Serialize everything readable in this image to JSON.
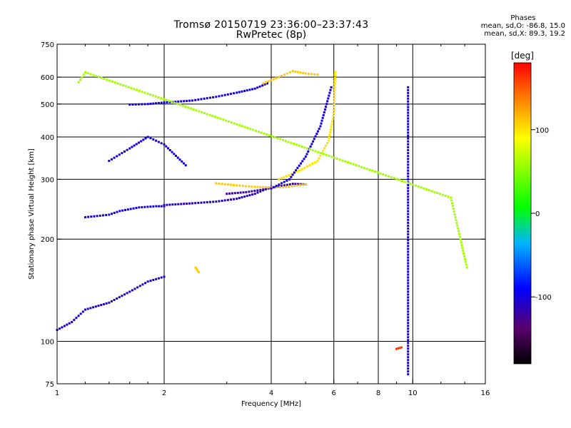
{
  "title": "Tromsø 20150719 23:36:00–23:37:43",
  "subtitle": "RwPretec (8p)",
  "stats": {
    "header": "Phases",
    "line_o": "mean, sd,O: -86.8, 15.0",
    "line_x": "mean, sd,X:  89.3, 19.2"
  },
  "colorbar": {
    "label": "[deg]",
    "range": [
      -180,
      180
    ],
    "ticks": [
      {
        "value": 100,
        "label": "100"
      },
      {
        "value": 0,
        "label": "0"
      },
      {
        "value": -100,
        "label": "-100"
      }
    ]
  },
  "chart_data": {
    "type": "scatter",
    "xlabel": "Frequency [MHz]",
    "ylabel": "Stationary phase Virtual Height [km]",
    "xscale": "log",
    "yscale": "log",
    "xlim": [
      1,
      16
    ],
    "ylim": [
      75,
      750
    ],
    "xticks": [
      {
        "value": 1,
        "label": "1"
      },
      {
        "value": 2,
        "label": "2"
      },
      {
        "value": 4,
        "label": "4"
      },
      {
        "value": 6,
        "label": "6"
      },
      {
        "value": 8,
        "label": "8"
      },
      {
        "value": 10,
        "label": "10"
      },
      {
        "value": 16,
        "label": "16"
      }
    ],
    "yticks": [
      {
        "value": 75,
        "label": "75"
      },
      {
        "value": 100,
        "label": "100"
      },
      {
        "value": 200,
        "label": "200"
      },
      {
        "value": 300,
        "label": "300"
      },
      {
        "value": 400,
        "label": "400"
      },
      {
        "value": 500,
        "label": "500"
      },
      {
        "value": 600,
        "label": "600"
      },
      {
        "value": 750,
        "label": "750"
      }
    ],
    "grid_x": [
      2,
      4,
      6,
      8,
      10
    ],
    "grid_y": [
      100,
      200,
      300,
      400,
      500,
      600
    ],
    "grid": true,
    "traces": [
      {
        "x": [
          1.2,
          1.4,
          1.5,
          1.7,
          1.9,
          2.0
        ],
        "y": [
          232,
          236,
          242,
          248,
          250,
          250
        ],
        "phase": -100
      },
      {
        "x": [
          2.0,
          2.4,
          2.8,
          3.2,
          3.6,
          4.0
        ],
        "y": [
          252,
          255,
          258,
          263,
          272,
          285
        ],
        "phase": -110
      },
      {
        "x": [
          3.0,
          3.4,
          3.8,
          4.2,
          4.6,
          5.0
        ],
        "y": [
          272,
          275,
          280,
          286,
          291,
          290
        ],
        "phase": -120
      },
      {
        "x": [
          2.8,
          3.2,
          3.6,
          4.0,
          4.4,
          5.0
        ],
        "y": [
          292,
          288,
          285,
          284,
          285,
          290
        ],
        "phase": 110
      },
      {
        "x": [
          4.2,
          4.8,
          5.4,
          5.8,
          6.0,
          6.05
        ],
        "y": [
          300,
          318,
          340,
          390,
          470,
          620
        ],
        "phase": 100
      },
      {
        "x": [
          4.0,
          4.5,
          5.0,
          5.5,
          5.9
        ],
        "y": [
          282,
          300,
          350,
          430,
          560
        ],
        "phase": -100
      },
      {
        "x": [
          1.6,
          1.8,
          2.0,
          2.4,
          2.8,
          3.2,
          3.6,
          3.9
        ],
        "y": [
          498,
          500,
          505,
          512,
          525,
          540,
          555,
          575
        ],
        "phase": -100
      },
      {
        "x": [
          3.8,
          4.2,
          4.6,
          5.0,
          5.4
        ],
        "y": [
          575,
          600,
          625,
          615,
          610
        ],
        "phase": 110
      },
      {
        "x": [
          1.0,
          1.1,
          1.2,
          1.4,
          1.6,
          1.8,
          2.0
        ],
        "y": [
          108,
          114,
          124,
          130,
          140,
          150,
          155
        ],
        "phase": -105
      },
      {
        "x": [
          1.4,
          1.6,
          1.8,
          2.0,
          2.3
        ],
        "y": [
          340,
          370,
          400,
          380,
          330
        ],
        "phase": -100
      },
      {
        "x": [
          9.7,
          9.7,
          9.7,
          9.7,
          9.7
        ],
        "y": [
          560,
          420,
          300,
          180,
          80
        ],
        "phase": -100
      },
      {
        "x": [
          2.45,
          2.5
        ],
        "y": [
          165,
          160
        ],
        "phase": 110
      },
      {
        "x": [
          9.0,
          9.3
        ],
        "y": [
          95,
          96
        ],
        "phase": 160
      },
      {
        "x": [
          1.15,
          1.2,
          12.8,
          14.2
        ],
        "y": [
          580,
          620,
          265,
          165
        ],
        "phase": 60
      }
    ]
  }
}
